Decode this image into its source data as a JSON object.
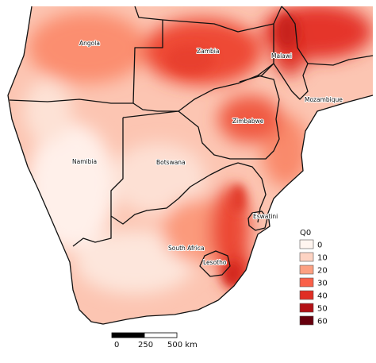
{
  "map": {
    "countries": [
      {
        "key": "angola",
        "name": "Angola"
      },
      {
        "key": "zambia",
        "name": "Zambia"
      },
      {
        "key": "malawi",
        "name": "Malawi"
      },
      {
        "key": "mozambique",
        "name": "Mozambique"
      },
      {
        "key": "zimbabwe",
        "name": "Zimbabwe"
      },
      {
        "key": "namibia",
        "name": "Namibia"
      },
      {
        "key": "botswana",
        "name": "Botswana"
      },
      {
        "key": "eswatini",
        "name": "Eswatini"
      },
      {
        "key": "south_africa",
        "name": "South Africa"
      },
      {
        "key": "lesotho",
        "name": "Lesotho"
      }
    ]
  },
  "legend": {
    "title": "Q0",
    "classes": [
      {
        "label": "0",
        "color": "#fff5f0"
      },
      {
        "label": "10",
        "color": "#fdd3c3"
      },
      {
        "label": "20",
        "color": "#fca082"
      },
      {
        "label": "30",
        "color": "#f96049"
      },
      {
        "label": "40",
        "color": "#e02e24"
      },
      {
        "label": "50",
        "color": "#b31116"
      },
      {
        "label": "60",
        "color": "#67000d"
      }
    ]
  },
  "scalebar": {
    "labels": [
      "0",
      "250",
      "500 km"
    ]
  }
}
